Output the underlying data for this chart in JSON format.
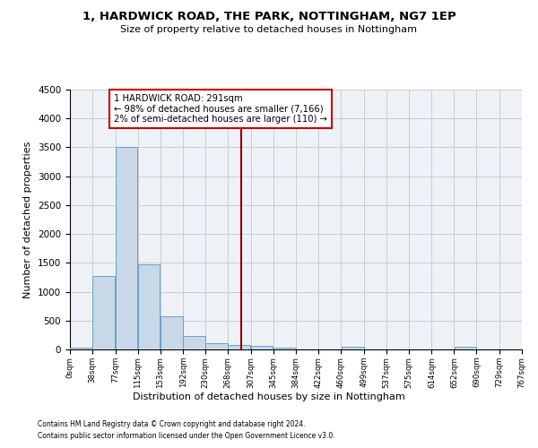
{
  "title": "1, HARDWICK ROAD, THE PARK, NOTTINGHAM, NG7 1EP",
  "subtitle": "Size of property relative to detached houses in Nottingham",
  "xlabel": "Distribution of detached houses by size in Nottingham",
  "ylabel": "Number of detached properties",
  "bar_edges": [
    0,
    38,
    77,
    115,
    153,
    192,
    230,
    268,
    307,
    345,
    384,
    422,
    460,
    499,
    537,
    575,
    614,
    652,
    690,
    729,
    767
  ],
  "bar_heights": [
    35,
    1280,
    3500,
    1480,
    580,
    240,
    110,
    80,
    55,
    35,
    0,
    0,
    50,
    0,
    0,
    0,
    0,
    40,
    0,
    0
  ],
  "bar_color": "#c8d8e8",
  "bar_edgecolor": "#6aa0c8",
  "subject_value": 291,
  "subject_label": "1 HARDWICK ROAD: 291sqm",
  "annotation_line1": "← 98% of detached houses are smaller (7,166)",
  "annotation_line2": "2% of semi-detached houses are larger (110) →",
  "vline_color": "#8b0000",
  "annotation_box_edgecolor": "#cc0000",
  "annotation_box_facecolor": "#ffffff",
  "ylim": [
    0,
    4500
  ],
  "yticks": [
    0,
    500,
    1000,
    1500,
    2000,
    2500,
    3000,
    3500,
    4000,
    4500
  ],
  "grid_color": "#cccccc",
  "background_color": "#eef2f7",
  "footer1": "Contains HM Land Registry data © Crown copyright and database right 2024.",
  "footer2": "Contains public sector information licensed under the Open Government Licence v3.0."
}
